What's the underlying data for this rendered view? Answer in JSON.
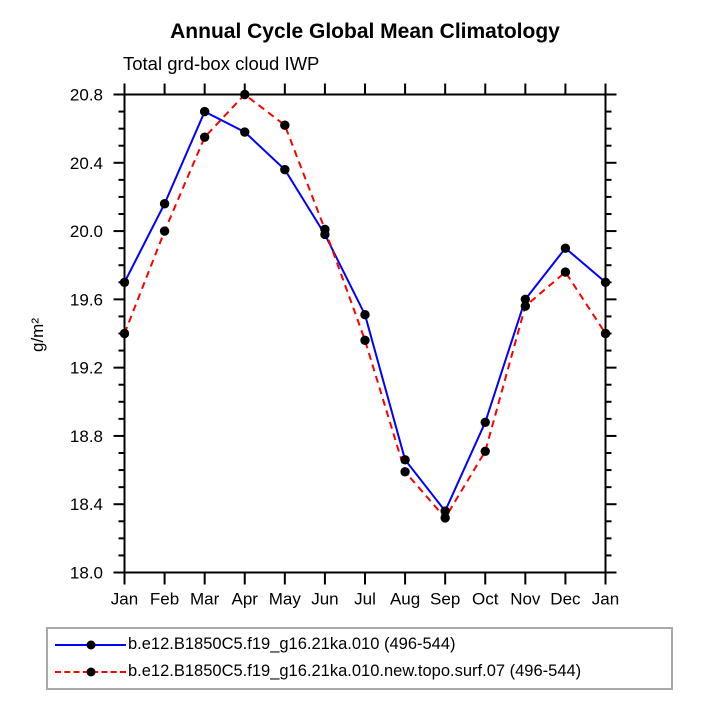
{
  "header": {
    "title": "Annual Cycle Global Mean Climatology",
    "subtitle": "Total grd-box cloud IWP"
  },
  "axes": {
    "y_unit_label": "g/m²",
    "axis_color": "#000000",
    "legend_border_color": "#a9a9a9"
  },
  "chart_data": {
    "type": "line",
    "title": "Annual Cycle Global Mean Climatology",
    "subtitle": "Total grd-box cloud IWP",
    "ylabel": "g/m²",
    "xlabel": "",
    "categories": [
      "Jan",
      "Feb",
      "Mar",
      "Apr",
      "May",
      "Jun",
      "Jul",
      "Aug",
      "Sep",
      "Oct",
      "Nov",
      "Dec",
      "Jan"
    ],
    "ylim": [
      18.0,
      20.8
    ],
    "ytick_labels": [
      "18.0",
      "18.4",
      "18.8",
      "19.2",
      "19.6",
      "20.0",
      "20.4",
      "20.8"
    ],
    "ytick_major_step": 0.4,
    "ytick_minor_step": 0.1,
    "grid": false,
    "legend_position": "bottom",
    "series": [
      {
        "name": "b.e12.B1850C5.f19_g16.21ka.010 (496-544)",
        "color": "#0000ff",
        "style": "solid",
        "marker": "circle",
        "marker_color": "#000000",
        "values": [
          19.7,
          20.16,
          20.7,
          20.58,
          20.36,
          19.98,
          19.51,
          18.66,
          18.36,
          18.88,
          19.6,
          19.9,
          19.7
        ]
      },
      {
        "name": "b.e12.B1850C5.f19_g16.21ka.010.new.topo.surf.07 (496-544)",
        "color": "#ff0000",
        "style": "dashed",
        "marker": "circle",
        "marker_color": "#000000",
        "values": [
          19.4,
          20.0,
          20.55,
          20.8,
          20.62,
          20.01,
          19.36,
          18.59,
          18.32,
          18.71,
          19.56,
          19.76,
          19.4
        ]
      }
    ]
  }
}
